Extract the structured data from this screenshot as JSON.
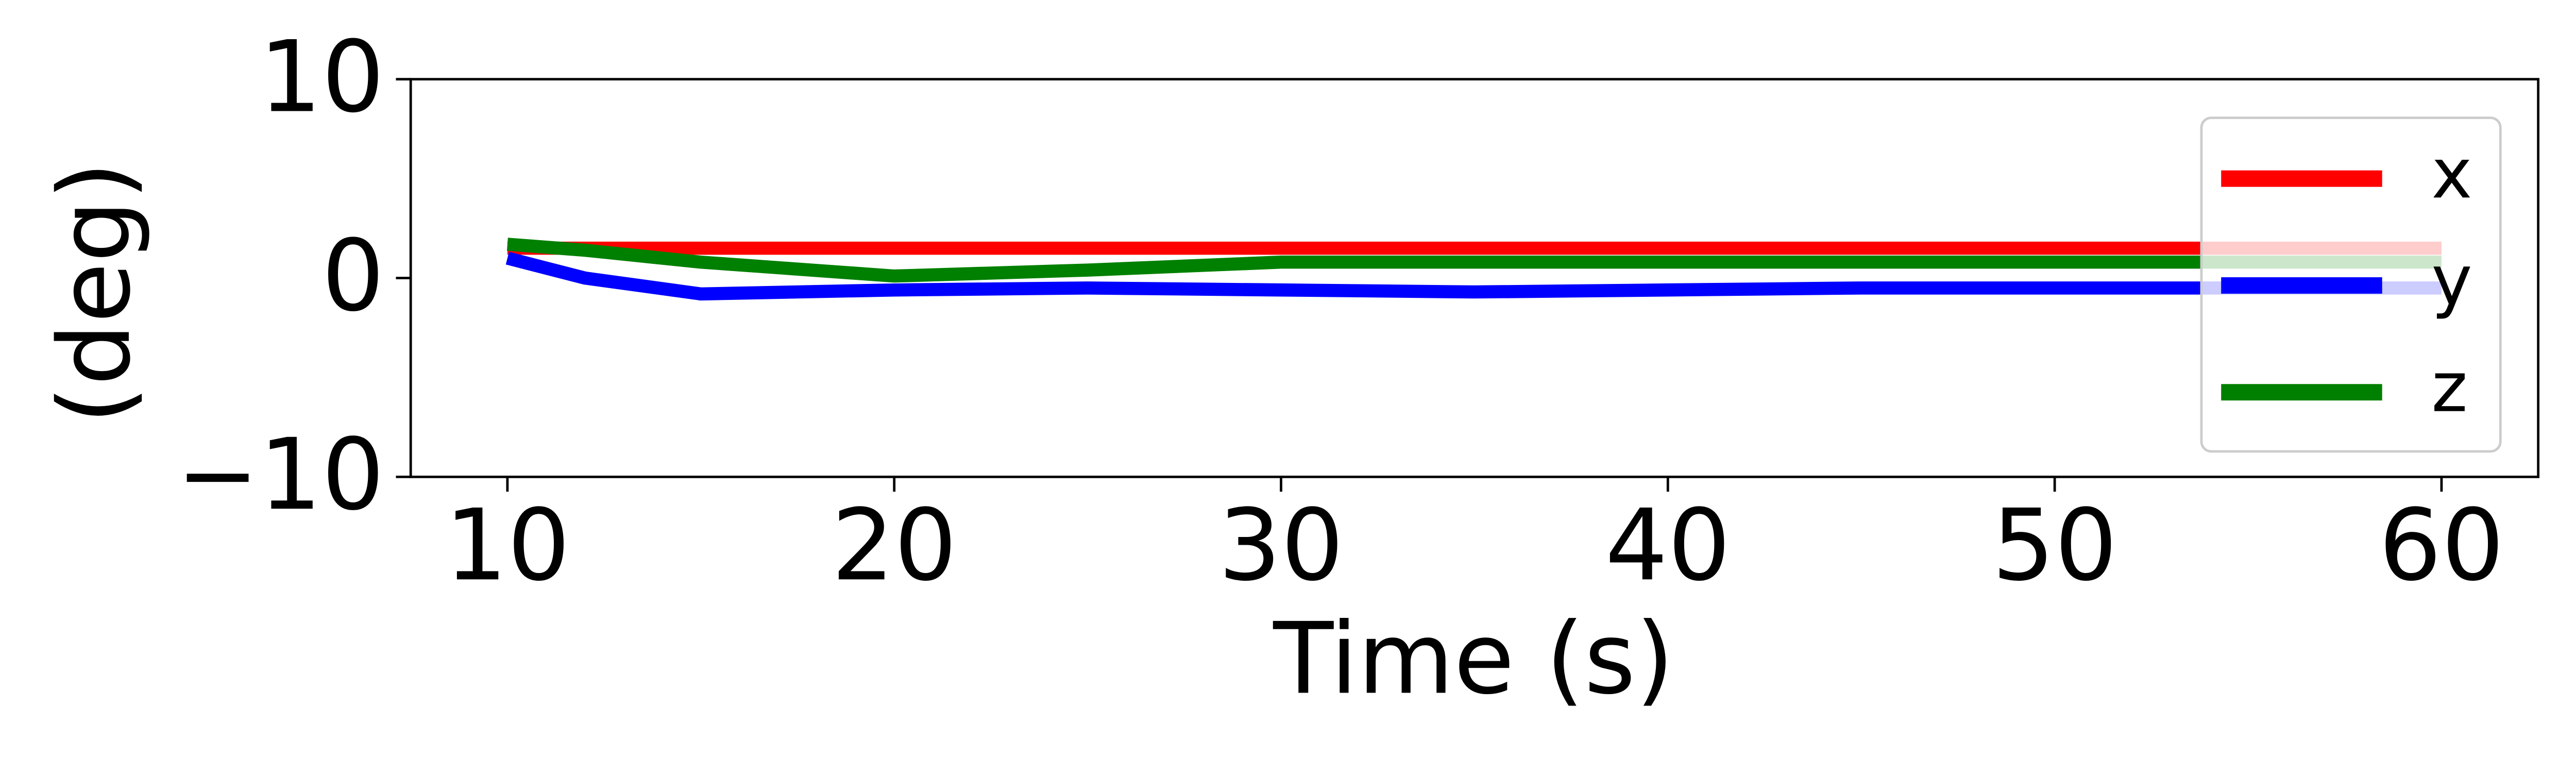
{
  "chart_data": {
    "type": "line",
    "xlabel": "Time (s)",
    "ylabel": "(deg)",
    "x": [
      10,
      12,
      15,
      20,
      25,
      30,
      35,
      40,
      45,
      50,
      55,
      60
    ],
    "series": [
      {
        "name": "x",
        "color": "#ff0000",
        "values": [
          1.5,
          1.5,
          1.5,
          1.5,
          1.5,
          1.5,
          1.5,
          1.5,
          1.5,
          1.5,
          1.5,
          1.5
        ]
      },
      {
        "name": "y",
        "color": "#0000ff",
        "values": [
          1.0,
          0.0,
          -0.8,
          -0.6,
          -0.5,
          -0.6,
          -0.7,
          -0.6,
          -0.5,
          -0.5,
          -0.5,
          -0.5
        ]
      },
      {
        "name": "z",
        "color": "#008000",
        "values": [
          1.7,
          1.4,
          0.8,
          0.1,
          0.4,
          0.8,
          0.8,
          0.8,
          0.8,
          0.8,
          0.8,
          0.8
        ]
      }
    ],
    "xlim": [
      7.5,
      62.5
    ],
    "ylim": [
      -10,
      10
    ],
    "xticks": [
      10,
      20,
      30,
      40,
      50,
      60
    ],
    "yticks": [
      {
        "value": -10,
        "label": "−10"
      },
      0,
      10
    ],
    "grid": false,
    "legend": "center right"
  }
}
